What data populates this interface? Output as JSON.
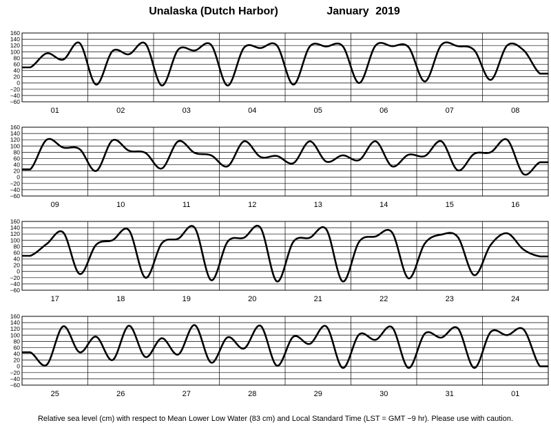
{
  "header": {
    "station": "Unalaska (Dutch Harbor)",
    "month": "January",
    "year": "2019"
  },
  "footer": {
    "note": "Relative sea level (cm) with respect to Mean Lower Low Water (83 cm) and Local Standard Time (LST = GMT −9 hr). Please use with caution."
  },
  "chart_data": {
    "type": "line",
    "units": "cm",
    "ylim": [
      -60,
      160
    ],
    "y_ticks": [
      160,
      140,
      120,
      100,
      80,
      60,
      40,
      20,
      0,
      -20,
      -40,
      -60
    ],
    "y_tick_labels": [
      "160",
      "140",
      "120",
      "100",
      "80",
      "60",
      "40",
      "20",
      "0",
      "−20",
      "−40",
      "−60"
    ],
    "grid": true,
    "line_color": "#000000",
    "panels": [
      {
        "day_labels": [
          "01",
          "02",
          "03",
          "04",
          "05",
          "06",
          "07",
          "08"
        ],
        "samples_per_day": 4,
        "values": [
          50,
          95,
          75,
          128,
          -5,
          102,
          92,
          126,
          -8,
          107,
          104,
          122,
          -8,
          113,
          112,
          120,
          -5,
          117,
          117,
          118,
          0,
          120,
          118,
          115,
          5,
          122,
          118,
          105,
          10,
          120,
          105,
          30
        ]
      },
      {
        "day_labels": [
          "09",
          "10",
          "11",
          "12",
          "13",
          "14",
          "15",
          "16"
        ],
        "samples_per_day": 4,
        "values": [
          25,
          120,
          95,
          90,
          20,
          118,
          85,
          78,
          28,
          115,
          78,
          70,
          35,
          115,
          65,
          68,
          45,
          115,
          50,
          70,
          55,
          115,
          35,
          72,
          68,
          115,
          22,
          75,
          80,
          120,
          10,
          48
        ]
      },
      {
        "day_labels": [
          "17",
          "18",
          "19",
          "20",
          "21",
          "22",
          "23",
          "24"
        ],
        "samples_per_day": 4,
        "values": [
          50,
          88,
          125,
          -8,
          85,
          100,
          132,
          -20,
          90,
          105,
          140,
          -28,
          95,
          108,
          140,
          -32,
          95,
          108,
          135,
          -32,
          95,
          112,
          125,
          -22,
          90,
          118,
          110,
          -12,
          85,
          122,
          70,
          48
        ]
      },
      {
        "day_labels": [
          "25",
          "26",
          "27",
          "28",
          "29",
          "30",
          "31",
          "01"
        ],
        "samples_per_day": 4,
        "values": [
          45,
          5,
          128,
          45,
          95,
          20,
          130,
          30,
          90,
          38,
          132,
          12,
          93,
          57,
          130,
          2,
          95,
          72,
          128,
          -5,
          102,
          85,
          125,
          -5,
          105,
          92,
          122,
          -5,
          110,
          100,
          118,
          0
        ]
      }
    ]
  }
}
